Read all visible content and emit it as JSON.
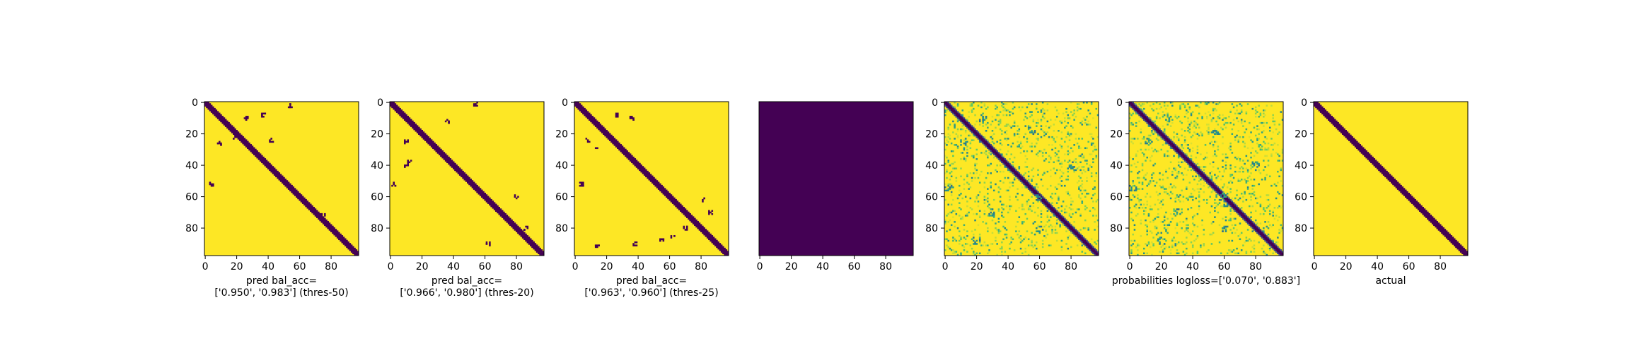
{
  "colors": {
    "background": "#440154",
    "foreground": "#fde725",
    "mid_teal": "#21918c",
    "light_green": "#7ad151",
    "axis": "#000000"
  },
  "chart_data": [
    {
      "type": "heatmap",
      "title": "",
      "xlabel_lines": [
        "pred bal_acc=",
        "['0.950', '0.983'] (thres-50)"
      ],
      "ylabel": "",
      "x_ticks": [
        "0",
        "20",
        "40",
        "60",
        "80"
      ],
      "y_ticks": [
        "0",
        "20",
        "40",
        "60",
        "80"
      ],
      "xlim": [
        -0.5,
        97.5
      ],
      "ylim": [
        97.5,
        -0.5
      ],
      "size": 98,
      "colormap": "viridis",
      "pattern": "binary prediction: low-value diagonal band (width ~3) with sparse off-diagonal low-value blobs near (5,54),(10,25),(8,37),(27,8),(20,18),(25,42),(52,3),(74,70),(60,55)"
    },
    {
      "type": "heatmap",
      "title": "",
      "xlabel_lines": [
        "pred bal_acc=",
        "['0.966', '0.980'] (thres-20)"
      ],
      "ylabel": "",
      "x_ticks": [
        "0",
        "20",
        "40",
        "60",
        "80"
      ],
      "y_ticks": [
        "0",
        "20",
        "40",
        "60",
        "80"
      ],
      "xlim": [
        -0.5,
        97.5
      ],
      "ylim": [
        97.5,
        -0.5
      ],
      "size": 98,
      "colormap": "viridis",
      "pattern": "binary prediction: low-value diagonal band (width ~3) with small blobs near (54,1),(36,12),(25,10),(53,1),(39,10),(42,13),(60,89),(80,36),(90,62)"
    },
    {
      "type": "heatmap",
      "title": "",
      "xlabel_lines": [
        "pred bal_acc=",
        "['0.963', '0.960'] (thres-25)"
      ],
      "ylabel": "",
      "x_ticks": [
        "0",
        "20",
        "40",
        "60",
        "80"
      ],
      "y_ticks": [
        "0",
        "20",
        "40",
        "60",
        "80"
      ],
      "xlim": [
        -0.5,
        97.5
      ],
      "ylim": [
        97.5,
        -0.5
      ],
      "size": 98,
      "colormap": "viridis",
      "pattern": "binary prediction: low-value diagonal band (width ~3) with more scattered blobs than first two panels"
    },
    {
      "type": "heatmap",
      "title": "",
      "xlabel_lines": [],
      "ylabel": "",
      "x_ticks": [
        "0",
        "20",
        "40",
        "60",
        "80"
      ],
      "y_ticks": [],
      "xlim": [
        -0.5,
        97.5
      ],
      "ylim": [
        97.5,
        -0.5
      ],
      "size": 98,
      "colormap": "viridis",
      "pattern": "uniform low value everywhere"
    },
    {
      "type": "heatmap",
      "title": "",
      "xlabel_lines": [],
      "ylabel": "",
      "x_ticks": [
        "0",
        "20",
        "40",
        "60",
        "80"
      ],
      "y_ticks": [
        "0",
        "20",
        "40",
        "60",
        "80"
      ],
      "xlim": [
        -0.5,
        97.5
      ],
      "ylim": [
        97.5,
        -0.5
      ],
      "size": 98,
      "colormap": "viridis",
      "pattern": "continuous probabilities: dark diagonal band, teal/green speckled off-diagonal structure on yellow background"
    },
    {
      "type": "heatmap",
      "title": "",
      "xlabel_lines": [
        "probabilities logloss=['0.070', '0.883']"
      ],
      "ylabel": "",
      "x_ticks": [
        "0",
        "20",
        "40",
        "60",
        "80"
      ],
      "y_ticks": [
        "0",
        "20",
        "40",
        "60",
        "80"
      ],
      "xlim": [
        -0.5,
        97.5
      ],
      "ylim": [
        97.5,
        -0.5
      ],
      "size": 98,
      "colormap": "viridis",
      "pattern": "continuous probabilities: dark diagonal band, teal/green speckled off-diagonal structure on yellow background"
    },
    {
      "type": "heatmap",
      "title": "",
      "xlabel_lines": [
        "actual"
      ],
      "ylabel": "",
      "x_ticks": [
        "0",
        "20",
        "40",
        "60",
        "80"
      ],
      "y_ticks": [
        "0",
        "20",
        "40",
        "60",
        "80"
      ],
      "xlim": [
        -0.5,
        97.5
      ],
      "ylim": [
        97.5,
        -0.5
      ],
      "size": 98,
      "colormap": "viridis",
      "pattern": "ground truth: clean low-value diagonal band (width ~3), yellow elsewhere"
    }
  ]
}
